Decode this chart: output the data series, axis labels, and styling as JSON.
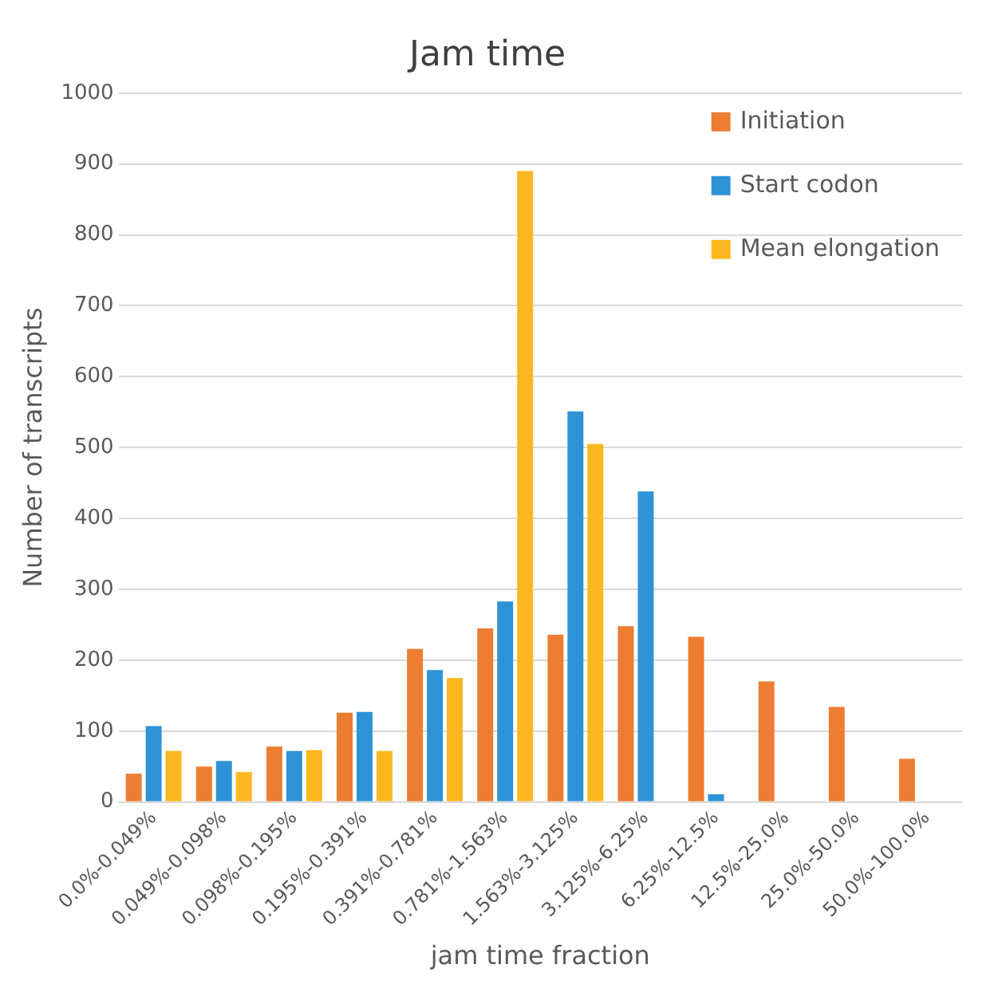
{
  "chart_data": {
    "type": "bar",
    "title": "Jam time",
    "xlabel": "jam time fraction",
    "ylabel": "Number of transcripts",
    "categories": [
      "0.0%-0.049%",
      "0.049%-0.098%",
      "0.098%-0.195%",
      "0.195%-0.391%",
      "0.391%-0.781%",
      "0.781%-1.563%",
      "1.563%-3.125%",
      "3.125%-6.25%",
      "6.25%-12.5%",
      "12.5%-25.0%",
      "25.0%-50.0%",
      "50.0%-100.0%"
    ],
    "series": [
      {
        "name": "Initiation",
        "color": "#ed7d31",
        "values": [
          40,
          50,
          78,
          126,
          216,
          245,
          236,
          248,
          233,
          170,
          134,
          61
        ]
      },
      {
        "name": "Start codon",
        "color": "#2e93d6",
        "values": [
          107,
          58,
          72,
          127,
          186,
          283,
          551,
          438,
          11,
          null,
          null,
          null
        ]
      },
      {
        "name": "Mean elongation",
        "color": "#fbb71f",
        "values": [
          72,
          42,
          73,
          72,
          175,
          890,
          505,
          null,
          null,
          null,
          null,
          null
        ]
      }
    ],
    "ylim": [
      0,
      1000
    ],
    "yticks": [
      0,
      100,
      200,
      300,
      400,
      500,
      600,
      700,
      800,
      900,
      1000
    ],
    "grid": "y",
    "legend": "top right"
  }
}
